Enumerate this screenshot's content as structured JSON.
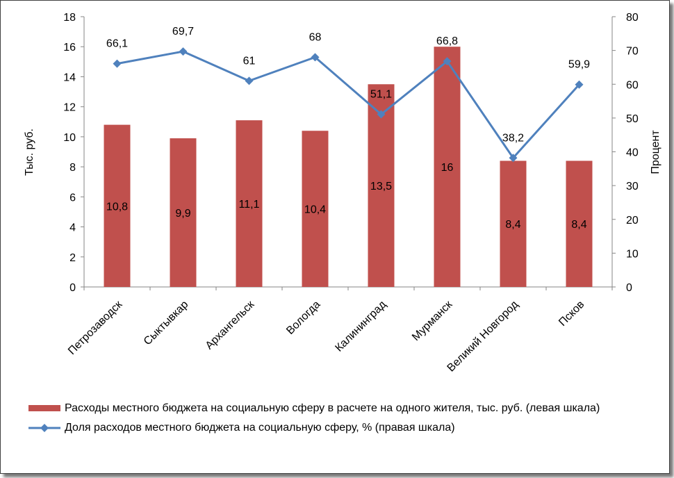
{
  "chart_data": {
    "type": "bar+line",
    "categories": [
      "Петрозаводск",
      "Сыктывкар",
      "Архангельск",
      "Вологда",
      "Калининград",
      "Мурманск",
      "Великий Новгород",
      "Псков"
    ],
    "series": [
      {
        "name": "Расходы местного бюджета на социальную сферу в расчете на одного жителя, тыс. руб. (левая шкала)",
        "type": "bar",
        "axis": "left",
        "values": [
          10.8,
          9.9,
          11.1,
          10.4,
          13.5,
          16,
          8.4,
          8.4
        ],
        "labels": [
          "10,8",
          "9,9",
          "11,1",
          "10,4",
          "13,5",
          "16",
          "8,4",
          "8,4"
        ],
        "color": "#c0504d"
      },
      {
        "name": "Доля расходов местного бюджета на социальную сферу, % (правая шкала)",
        "type": "line",
        "axis": "right",
        "values": [
          66.1,
          69.7,
          61,
          68,
          51.1,
          66.8,
          38.2,
          59.9
        ],
        "labels": [
          "66,1",
          "69,7",
          "61",
          "68",
          "51,1",
          "66,8",
          "38,2",
          "59,9"
        ],
        "color": "#4f81bd",
        "marker": "diamond"
      }
    ],
    "y_left": {
      "label": "Тыс. руб.",
      "lim": [
        0,
        18
      ],
      "ticks": [
        "0",
        "2",
        "4",
        "6",
        "8",
        "10",
        "12",
        "14",
        "16",
        "18"
      ]
    },
    "y_right": {
      "label": "Процент",
      "lim": [
        0,
        80
      ],
      "ticks": [
        "0",
        "10",
        "20",
        "30",
        "40",
        "50",
        "60",
        "70",
        "80"
      ]
    },
    "grid": false,
    "legend_position": "bottom"
  }
}
